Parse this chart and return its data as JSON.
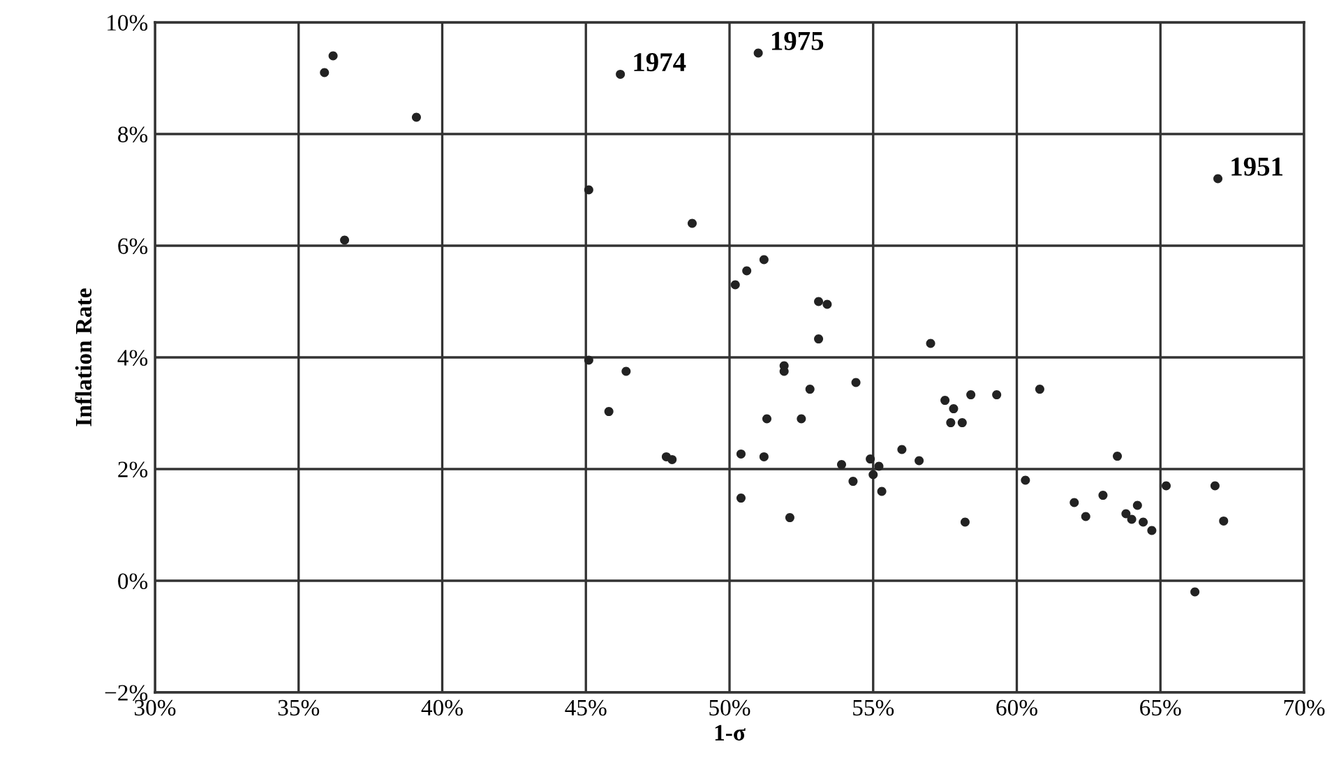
{
  "chart_data": {
    "type": "scatter",
    "xlabel": "1-σ",
    "ylabel": "Inflation Rate",
    "x": [
      35.9,
      36.2,
      36.6,
      39.1,
      46.2,
      51.0,
      45.1,
      48.7,
      50.2,
      50.6,
      51.2,
      53.1,
      53.4,
      53.1,
      45.1,
      46.4,
      51.9,
      51.9,
      54.4,
      52.8,
      45.8,
      51.3,
      52.5,
      47.8,
      48.0,
      50.4,
      51.2,
      53.9,
      54.9,
      55.2,
      55.0,
      54.3,
      55.3,
      50.4,
      52.1,
      57.0,
      57.5,
      58.4,
      59.3,
      60.8,
      57.8,
      57.7,
      58.1,
      56.0,
      56.6,
      63.5,
      60.3,
      58.2,
      62.0,
      63.0,
      62.4,
      64.2,
      63.8,
      64.0,
      64.4,
      64.7,
      65.2,
      66.9,
      67.2,
      66.2,
      67.0
    ],
    "values": [
      9.1,
      9.4,
      6.1,
      8.3,
      9.07,
      9.45,
      7.0,
      6.4,
      5.3,
      5.55,
      5.75,
      5.0,
      4.95,
      4.33,
      3.95,
      3.75,
      3.85,
      3.75,
      3.55,
      3.43,
      3.03,
      2.9,
      2.9,
      2.22,
      2.17,
      2.27,
      2.22,
      2.08,
      2.18,
      2.05,
      1.9,
      1.78,
      1.6,
      1.48,
      1.13,
      4.25,
      3.23,
      3.33,
      3.33,
      3.43,
      3.08,
      2.83,
      2.83,
      2.35,
      2.15,
      2.23,
      1.8,
      1.05,
      1.4,
      1.53,
      1.15,
      1.35,
      1.2,
      1.1,
      1.05,
      0.9,
      1.7,
      1.7,
      1.07,
      -0.2,
      7.2
    ],
    "color": "#222222",
    "marker": "circle",
    "grid": true,
    "xlim": [
      30,
      70
    ],
    "ylim": [
      -2,
      10
    ],
    "xticks": [
      {
        "value": 30,
        "label": "30%"
      },
      {
        "value": 35,
        "label": "35%"
      },
      {
        "value": 40,
        "label": "40%"
      },
      {
        "value": 45,
        "label": "45%"
      },
      {
        "value": 50,
        "label": "50%"
      },
      {
        "value": 55,
        "label": "55%"
      },
      {
        "value": 60,
        "label": "60%"
      },
      {
        "value": 65,
        "label": "65%"
      },
      {
        "value": 70,
        "label": "70%"
      }
    ],
    "yticks": [
      {
        "value": -2,
        "label": "−2%"
      },
      {
        "value": 0,
        "label": "0%"
      },
      {
        "value": 2,
        "label": "2%"
      },
      {
        "value": 4,
        "label": "4%"
      },
      {
        "value": 6,
        "label": "6%"
      },
      {
        "value": 8,
        "label": "8%"
      },
      {
        "value": 10,
        "label": "10%"
      }
    ],
    "annotations": [
      {
        "text": "1974",
        "x": 46.2,
        "y": 9.07
      },
      {
        "text": "1975",
        "x": 51.0,
        "y": 9.45
      },
      {
        "text": "1951",
        "x": 67.0,
        "y": 7.2
      }
    ]
  }
}
